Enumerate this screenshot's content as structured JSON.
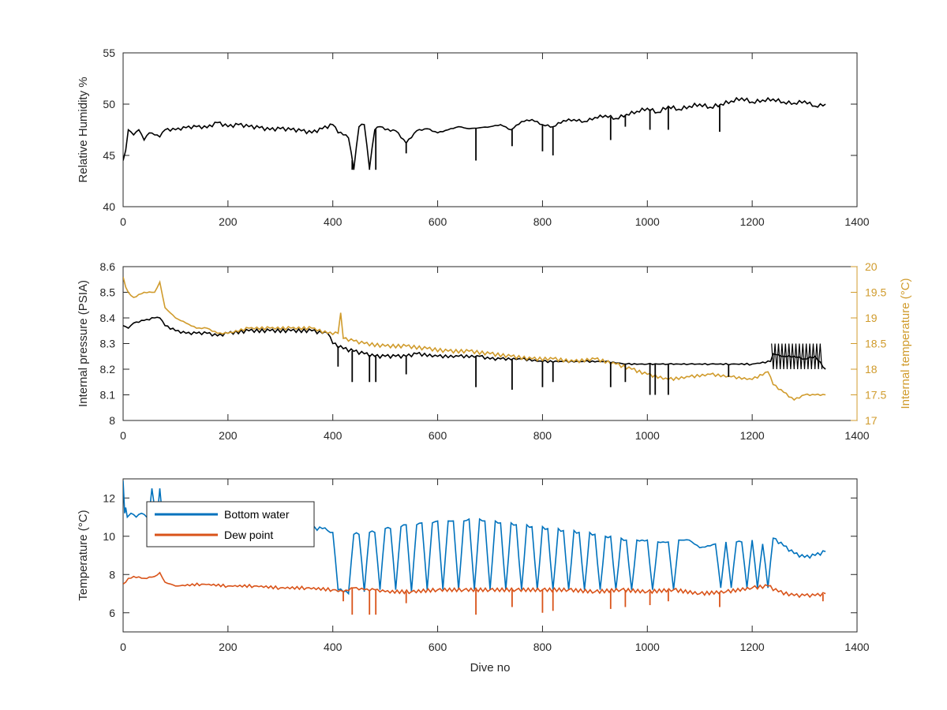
{
  "chart_data": [
    {
      "type": "line",
      "title": "",
      "xlabel": "",
      "ylabel": "Relative Humidity %",
      "xlim": [
        0,
        1400
      ],
      "ylim": [
        40,
        55
      ],
      "xticks": [
        "0",
        "200",
        "400",
        "600",
        "800",
        "1000",
        "1200",
        "1400"
      ],
      "yticks": [
        "40",
        "45",
        "50",
        "55"
      ],
      "grid": false,
      "series": [
        {
          "color": "#000000",
          "x": [
            0,
            5,
            10,
            20,
            30,
            40,
            50,
            60,
            70,
            80,
            100,
            120,
            140,
            160,
            180,
            200,
            220,
            240,
            260,
            280,
            300,
            320,
            340,
            360,
            380,
            400,
            410,
            420,
            430,
            440,
            450,
            460,
            470,
            480,
            490,
            500,
            520,
            540,
            560,
            580,
            600,
            620,
            640,
            660,
            680,
            700,
            720,
            740,
            760,
            780,
            800,
            820,
            840,
            860,
            880,
            900,
            920,
            940,
            960,
            980,
            1000,
            1020,
            1040,
            1060,
            1080,
            1100,
            1120,
            1140,
            1160,
            1180,
            1200,
            1220,
            1240,
            1260,
            1280,
            1300,
            1320,
            1340
          ],
          "values": [
            44.5,
            45.5,
            47.5,
            47,
            47.5,
            46.5,
            47.2,
            47,
            46.8,
            47.5,
            47.5,
            47.7,
            47.8,
            47.7,
            48.2,
            47.8,
            48,
            47.8,
            47.7,
            47.5,
            47.6,
            47.5,
            47.4,
            47.2,
            47.6,
            48,
            47.2,
            47,
            46.7,
            43.6,
            47.8,
            48,
            43.7,
            47.5,
            47.8,
            47.5,
            47.4,
            46.2,
            47.4,
            47.6,
            47.2,
            47.5,
            47.8,
            47.6,
            47.7,
            47.8,
            48,
            47.5,
            48.3,
            48.5,
            48,
            47.8,
            48.4,
            48.5,
            48.3,
            48.7,
            48.9,
            48.6,
            49,
            49.3,
            49.6,
            49.2,
            49.8,
            49.5,
            49.8,
            50,
            49.7,
            50,
            50.3,
            50.6,
            50.2,
            50.4,
            50.5,
            50.2,
            50.1,
            50.3,
            49.8,
            50
          ]
        }
      ],
      "spikes": [
        [
          437,
          43.6
        ],
        [
          470,
          43.6
        ],
        [
          482,
          43.6
        ],
        [
          540,
          45.2
        ],
        [
          673,
          44.5
        ],
        [
          742,
          45.9
        ],
        [
          800,
          45.4
        ],
        [
          820,
          45
        ],
        [
          930,
          46.5
        ],
        [
          958,
          47.8
        ],
        [
          1005,
          47.5
        ],
        [
          1040,
          47.5
        ],
        [
          1138,
          47.3
        ]
      ]
    },
    {
      "type": "line",
      "title": "",
      "xlabel": "",
      "ylabel": "Internal pressure (PSIA)",
      "ylabel_right": "Internal temperature (°C)",
      "xlim": [
        0,
        1400
      ],
      "ylim": [
        8,
        8.6
      ],
      "ylim_right": [
        17,
        20
      ],
      "xticks": [
        "0",
        "200",
        "400",
        "600",
        "800",
        "1000",
        "1200",
        "1400"
      ],
      "yticks": [
        "8",
        "8.1",
        "8.2",
        "8.3",
        "8.4",
        "8.5",
        "8.6"
      ],
      "yticks_right": [
        "17",
        "17.5",
        "18",
        "18.5",
        "19",
        "19.5",
        "20"
      ],
      "grid": false,
      "series": [
        {
          "axis": "left",
          "color": "#000000",
          "x": [
            0,
            10,
            20,
            40,
            60,
            70,
            80,
            100,
            120,
            140,
            160,
            180,
            200,
            240,
            280,
            320,
            360,
            380,
            390,
            400,
            420,
            440,
            460,
            480,
            500,
            520,
            540,
            560,
            600,
            640,
            680,
            700,
            720,
            760,
            800,
            840,
            880,
            920,
            960,
            1000,
            1040,
            1080,
            1120,
            1160,
            1200,
            1235,
            1240,
            1260,
            1280,
            1300,
            1320,
            1340
          ],
          "values": [
            8.37,
            8.36,
            8.38,
            8.39,
            8.4,
            8.4,
            8.37,
            8.35,
            8.34,
            8.34,
            8.34,
            8.33,
            8.34,
            8.35,
            8.35,
            8.35,
            8.35,
            8.34,
            8.34,
            8.3,
            8.28,
            8.27,
            8.26,
            8.25,
            8.25,
            8.25,
            8.25,
            8.26,
            8.25,
            8.25,
            8.25,
            8.24,
            8.24,
            8.24,
            8.23,
            8.23,
            8.23,
            8.23,
            8.22,
            8.22,
            8.22,
            8.22,
            8.22,
            8.22,
            8.22,
            8.23,
            8.26,
            8.25,
            8.25,
            8.24,
            8.25,
            8.2
          ]
        },
        {
          "axis": "right",
          "color": "#D09B2C",
          "x": [
            0,
            5,
            10,
            20,
            40,
            60,
            70,
            80,
            100,
            120,
            140,
            160,
            180,
            200,
            240,
            280,
            320,
            360,
            390,
            410,
            415,
            420,
            440,
            460,
            500,
            540,
            580,
            620,
            660,
            700,
            740,
            780,
            820,
            860,
            900,
            940,
            970,
            1000,
            1040,
            1080,
            1120,
            1160,
            1200,
            1230,
            1240,
            1260,
            1280,
            1300,
            1320,
            1340
          ],
          "values": [
            19.8,
            19.6,
            19.5,
            19.4,
            19.5,
            19.5,
            19.7,
            19.2,
            19,
            18.9,
            18.8,
            18.8,
            18.7,
            18.7,
            18.8,
            18.8,
            18.8,
            18.8,
            18.7,
            18.7,
            19.1,
            18.6,
            18.55,
            18.5,
            18.45,
            18.45,
            18.4,
            18.35,
            18.35,
            18.3,
            18.25,
            18.2,
            18.2,
            18.15,
            18.2,
            18.1,
            18,
            17.9,
            17.8,
            17.85,
            17.9,
            17.85,
            17.8,
            17.95,
            17.7,
            17.55,
            17.4,
            17.5,
            17.5,
            17.5
          ]
        }
      ],
      "spikes": [
        [
          410,
          8.21
        ],
        [
          437,
          8.15
        ],
        [
          470,
          8.15
        ],
        [
          482,
          8.15
        ],
        [
          540,
          8.18
        ],
        [
          673,
          8.13
        ],
        [
          742,
          8.12
        ],
        [
          800,
          8.13
        ],
        [
          820,
          8.15
        ],
        [
          930,
          8.13
        ],
        [
          958,
          8.15
        ],
        [
          1005,
          8.1
        ],
        [
          1015,
          8.1
        ],
        [
          1040,
          8.1
        ],
        [
          1155,
          8.17
        ]
      ],
      "band": {
        "x_start": 1237,
        "x_end": 1335,
        "low": 8.2,
        "high": 8.3
      }
    },
    {
      "type": "line",
      "title": "",
      "xlabel": "Dive no",
      "ylabel": "Temperature (°C)",
      "xlim": [
        0,
        1400
      ],
      "ylim": [
        5,
        13
      ],
      "xticks": [
        "0",
        "200",
        "400",
        "600",
        "800",
        "1000",
        "1200",
        "1400"
      ],
      "yticks": [
        "6",
        "8",
        "10",
        "12"
      ],
      "grid": false,
      "legend": {
        "position": "top-left",
        "entries": [
          "Bottom water",
          "Dew point"
        ]
      },
      "series": [
        {
          "name": "Bottom water",
          "color": "#0072BD",
          "x": [
            0,
            3,
            5,
            8,
            15,
            25,
            35,
            45,
            50,
            55,
            60,
            65,
            70,
            75,
            80,
            100,
            150,
            200,
            250,
            300,
            350,
            380,
            390,
            395,
            400,
            410,
            420,
            430,
            440,
            450,
            460,
            470,
            480,
            490,
            500,
            510,
            520,
            530,
            540,
            550,
            560,
            570,
            580,
            590,
            600,
            610,
            620,
            630,
            640,
            650,
            660,
            670,
            680,
            690,
            700,
            710,
            720,
            730,
            740,
            750,
            760,
            770,
            780,
            790,
            800,
            810,
            820,
            830,
            840,
            850,
            860,
            870,
            880,
            890,
            900,
            910,
            920,
            930,
            940,
            950,
            960,
            970,
            980,
            990,
            1000,
            1010,
            1020,
            1030,
            1040,
            1050,
            1060,
            1080,
            1100,
            1120,
            1130,
            1140,
            1150,
            1160,
            1170,
            1180,
            1190,
            1200,
            1210,
            1220,
            1230,
            1240,
            1260,
            1280,
            1300,
            1320,
            1340
          ],
          "values": [
            12.9,
            11.2,
            11.5,
            11,
            11.2,
            11,
            11.2,
            11,
            11.2,
            12.5,
            11.5,
            11,
            12.5,
            11,
            11,
            10.9,
            10.8,
            10.7,
            10.6,
            10.5,
            10.4,
            10.4,
            10.3,
            10.2,
            10.2,
            7.2,
            7.1,
            7,
            10.1,
            10.1,
            7.1,
            10.2,
            10.2,
            7.2,
            10.4,
            10.4,
            7.2,
            10.5,
            10.6,
            7.1,
            10.6,
            10.7,
            7.2,
            10.7,
            10.8,
            7.2,
            10.8,
            10.8,
            7.2,
            10.8,
            10.9,
            7.2,
            10.9,
            10.8,
            7.2,
            10.8,
            10.7,
            7.2,
            10.7,
            10.6,
            7.2,
            10.6,
            10.5,
            7.2,
            10.5,
            10.4,
            7.2,
            10.4,
            10.3,
            7.2,
            10.3,
            10.2,
            7.2,
            10.2,
            10.1,
            7.2,
            10,
            10,
            7.2,
            9.9,
            9.8,
            7.2,
            9.8,
            9.8,
            9.8,
            7.2,
            9.7,
            9.7,
            9.7,
            7.2,
            9.8,
            9.8,
            9.4,
            9.5,
            9.6,
            7.3,
            9.7,
            7.3,
            9.7,
            9.7,
            7.3,
            9.8,
            7.3,
            9.6,
            7.3,
            9.9,
            9.5,
            9.1,
            8.9,
            9,
            9.2
          ]
        },
        {
          "name": "Dew point",
          "color": "#D95319",
          "x": [
            0,
            10,
            20,
            40,
            60,
            70,
            80,
            100,
            150,
            200,
            250,
            300,
            350,
            400,
            420,
            440,
            460,
            480,
            500,
            550,
            600,
            650,
            700,
            750,
            800,
            850,
            900,
            950,
            1000,
            1050,
            1100,
            1150,
            1200,
            1230,
            1250,
            1280,
            1300,
            1320,
            1340
          ],
          "values": [
            7.5,
            7.8,
            7.9,
            7.8,
            7.9,
            8.1,
            7.6,
            7.4,
            7.5,
            7.4,
            7.4,
            7.3,
            7.3,
            7.2,
            7.1,
            7.3,
            7.2,
            7.2,
            7.1,
            7.1,
            7.2,
            7.2,
            7.2,
            7.2,
            7.2,
            7.2,
            7.1,
            7.2,
            7.1,
            7.2,
            7,
            7.1,
            7.3,
            7.4,
            7.1,
            6.9,
            6.9,
            6.9,
            7
          ]
        }
      ],
      "spikes": [
        [
          420,
          6.6
        ],
        [
          437,
          5.9
        ],
        [
          470,
          5.9
        ],
        [
          482,
          5.9
        ],
        [
          540,
          6.5
        ],
        [
          673,
          5.9
        ],
        [
          742,
          6.3
        ],
        [
          800,
          6
        ],
        [
          820,
          6.1
        ],
        [
          930,
          6.2
        ],
        [
          958,
          6.3
        ],
        [
          1005,
          6.4
        ],
        [
          1040,
          6.6
        ],
        [
          1138,
          6.3
        ],
        [
          1335,
          6.6
        ]
      ]
    }
  ]
}
